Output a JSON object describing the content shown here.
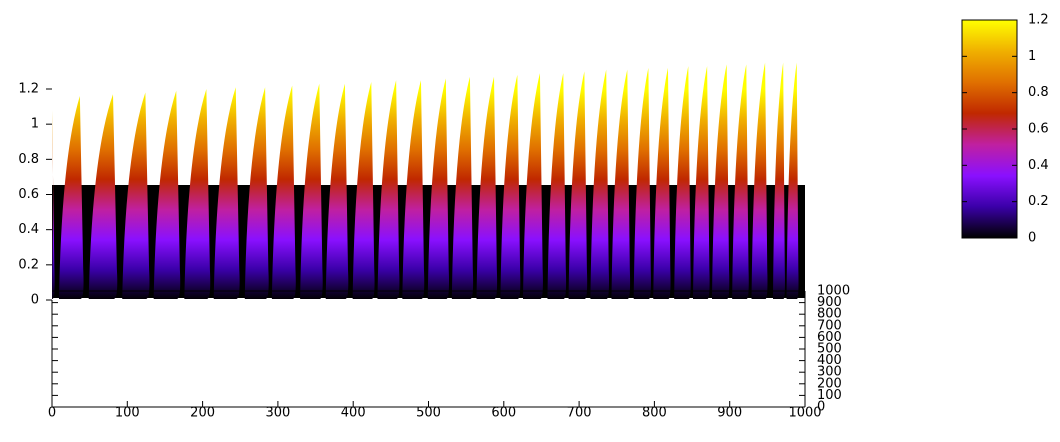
{
  "chart_data": {
    "type": "surface",
    "x": [
      0,
      37,
      81,
      124,
      165,
      205,
      244,
      283,
      319,
      355,
      389,
      424,
      457,
      490,
      523,
      555,
      587,
      618,
      648,
      679,
      707,
      736,
      764,
      792,
      818,
      845,
      870,
      896,
      922,
      947,
      971,
      989
    ],
    "values": [
      1.08,
      1.16,
      1.17,
      1.18,
      1.19,
      1.2,
      1.21,
      1.21,
      1.22,
      1.23,
      1.23,
      1.24,
      1.25,
      1.25,
      1.26,
      1.27,
      1.27,
      1.28,
      1.29,
      1.29,
      1.3,
      1.31,
      1.31,
      1.32,
      1.32,
      1.33,
      1.33,
      1.34,
      1.34,
      1.35,
      1.35,
      1.35
    ],
    "xlim": [
      0,
      1000
    ],
    "xticks": [
      0,
      100,
      200,
      300,
      400,
      500,
      600,
      700,
      800,
      900,
      1000
    ],
    "ylim": [
      0,
      1000
    ],
    "yticks": [
      0,
      100,
      200,
      300,
      400,
      500,
      600,
      700,
      800,
      900,
      1000
    ],
    "zlim": [
      0,
      1.2
    ],
    "zticks": [
      0,
      0.2,
      0.4,
      0.6,
      0.8,
      1,
      1.2
    ],
    "cblim": [
      0,
      1.2
    ],
    "cbticks": [
      0,
      0.2,
      0.4,
      0.6,
      0.8,
      1,
      1.2
    ],
    "palette": [
      "#000000",
      "#3a00a8",
      "#8a10ff",
      "#c020a0",
      "#c02800",
      "#e07000",
      "#f0b000",
      "#ffff00"
    ]
  }
}
